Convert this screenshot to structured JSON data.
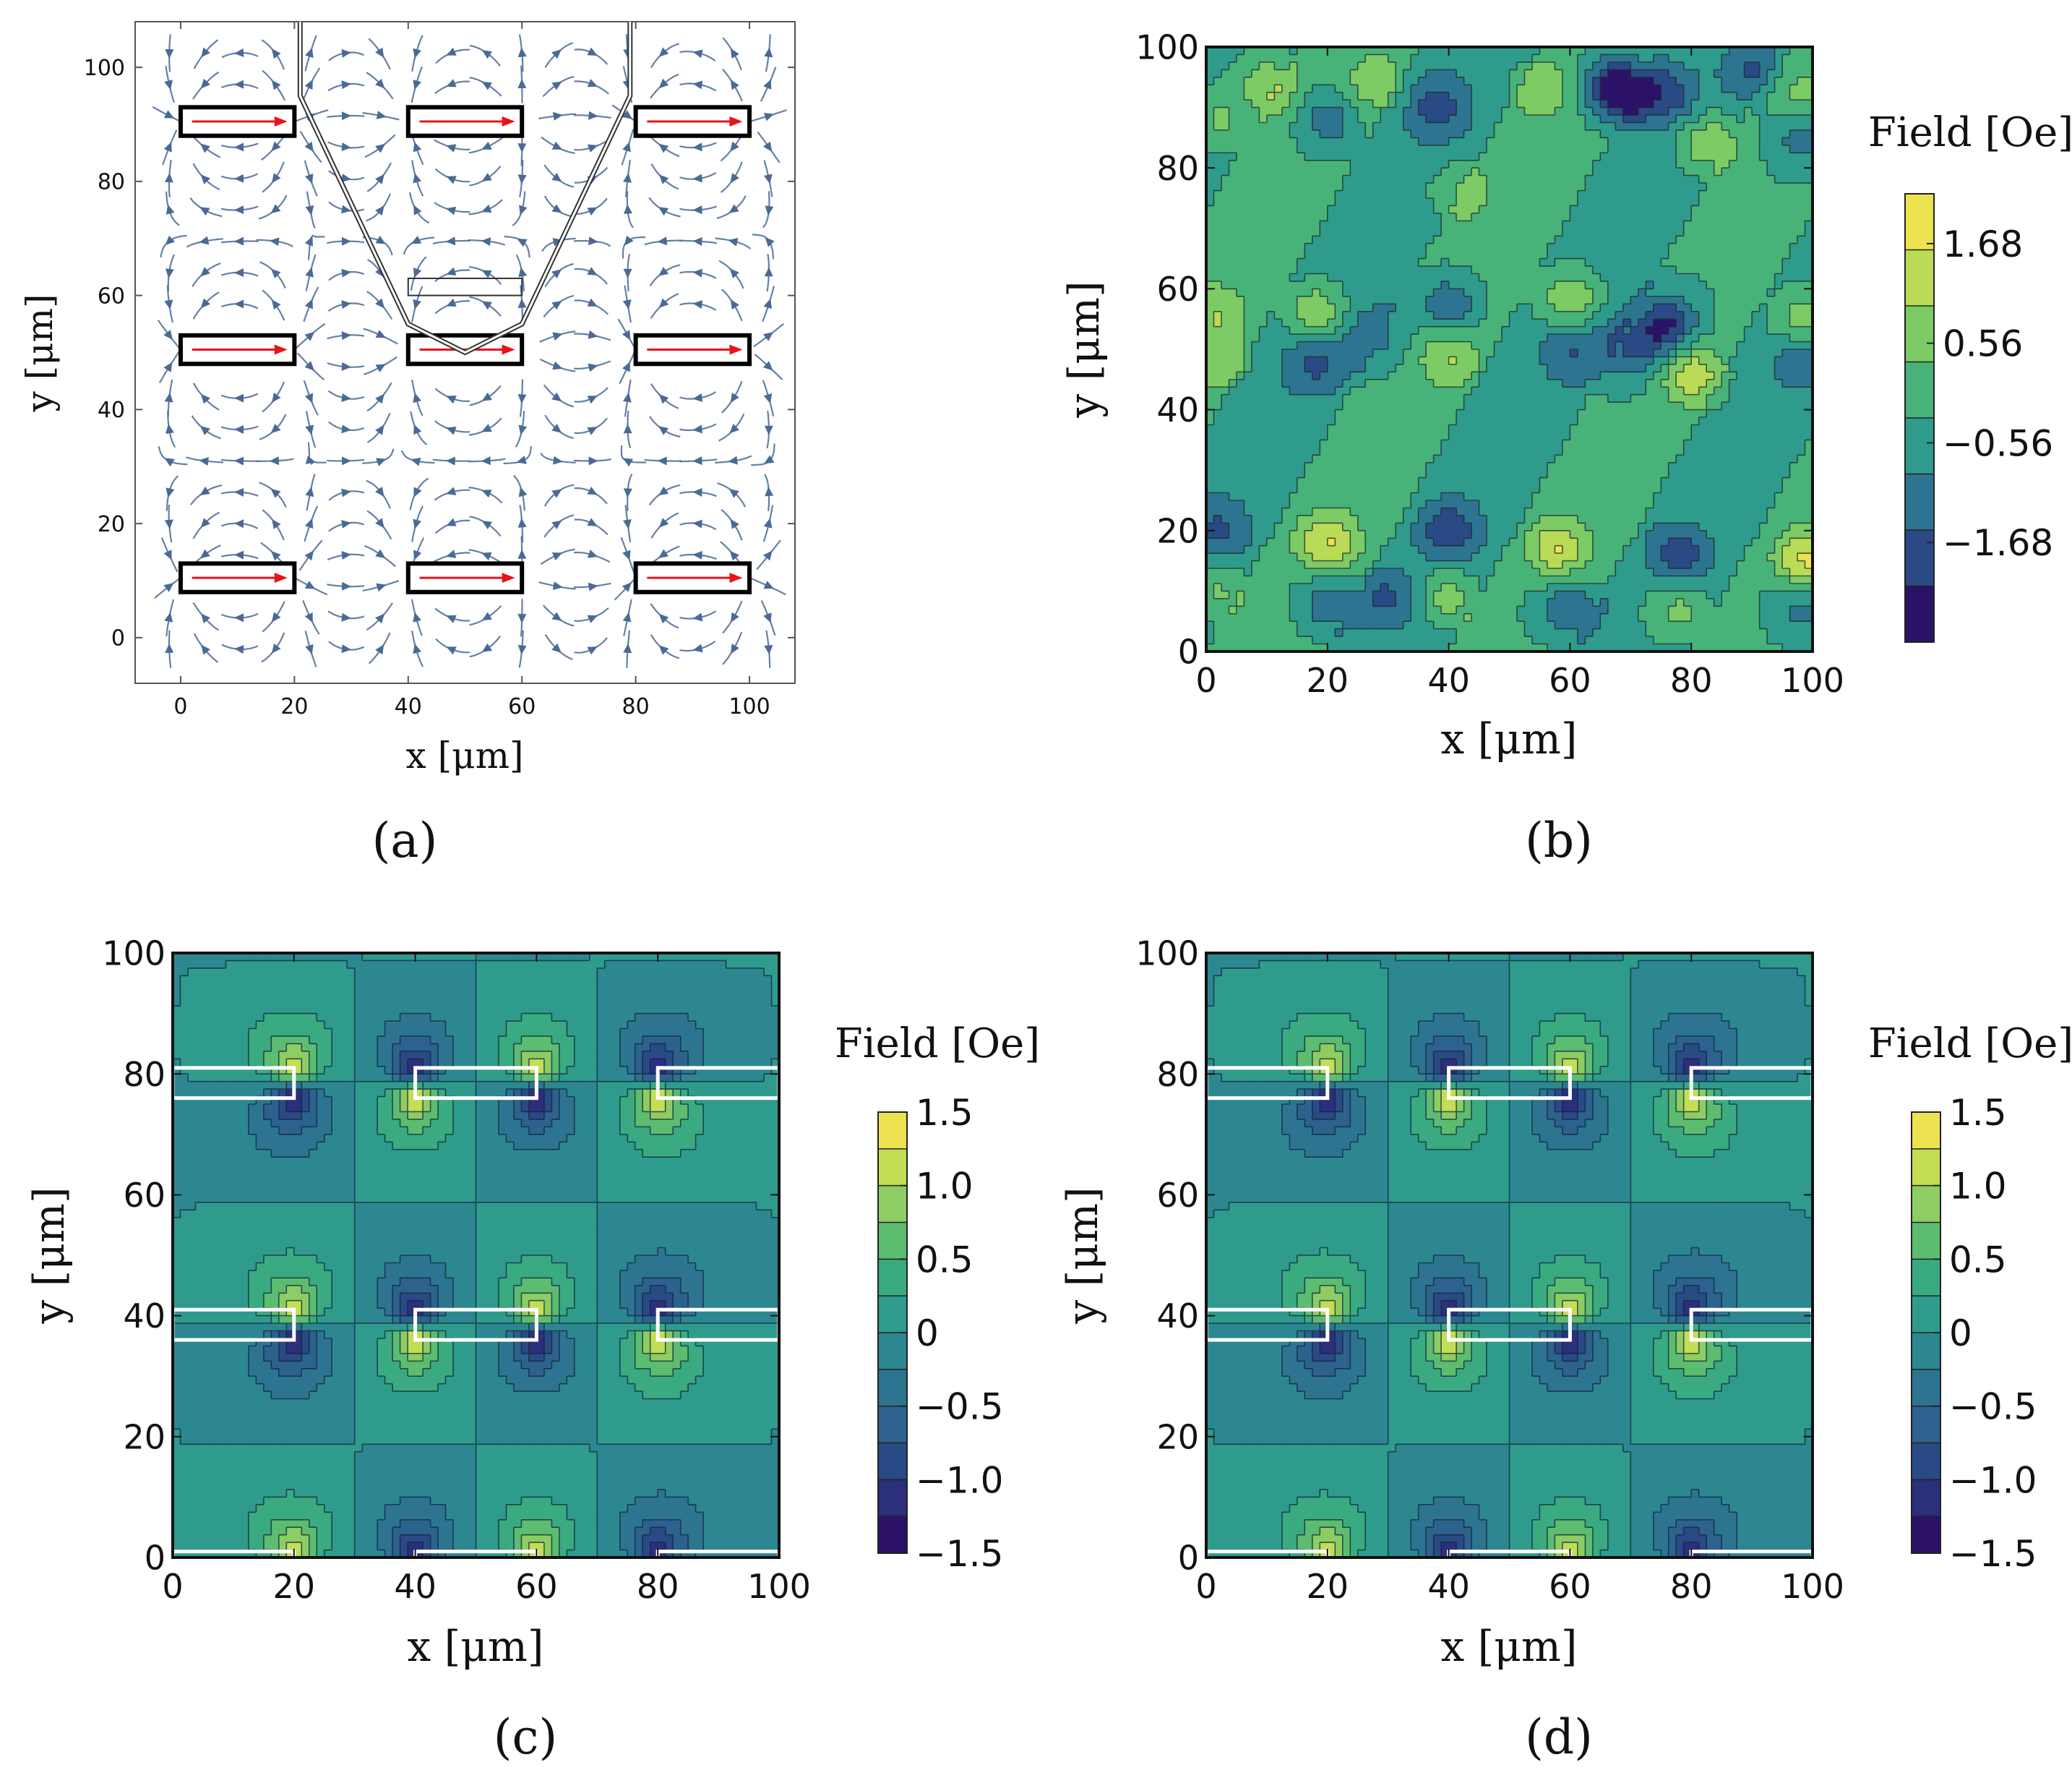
{
  "figure": {
    "panel_labels": [
      "(a)",
      "(b)",
      "(c)",
      "(d)"
    ]
  },
  "chart_data": [
    {
      "panel": "(a)",
      "type": "vector-field",
      "title": "",
      "xlabel": "x [μm]",
      "ylabel": "y [μm]",
      "xlim": [
        -8,
        108
      ],
      "ylim": [
        -8,
        108
      ],
      "xticks": [
        0,
        20,
        40,
        60,
        80,
        100
      ],
      "yticks": [
        0,
        20,
        40,
        60,
        80,
        100
      ],
      "arrow_color": "#4a6a96",
      "moment_color": "#e8141b",
      "magnets": [
        {
          "x0": 0,
          "x1": 20,
          "y0": 88,
          "y1": 93
        },
        {
          "x0": 40,
          "x1": 60,
          "y0": 88,
          "y1": 93
        },
        {
          "x0": 80,
          "x1": 100,
          "y0": 88,
          "y1": 93
        },
        {
          "x0": 0,
          "x1": 20,
          "y0": 48,
          "y1": 53
        },
        {
          "x0": 40,
          "x1": 60,
          "y0": 48,
          "y1": 53
        },
        {
          "x0": 80,
          "x1": 100,
          "y0": 48,
          "y1": 53
        },
        {
          "x0": 0,
          "x1": 20,
          "y0": 8,
          "y1": 13
        },
        {
          "x0": 40,
          "x1": 60,
          "y0": 8,
          "y1": 13
        },
        {
          "x0": 80,
          "x1": 100,
          "y0": 8,
          "y1": 13
        }
      ],
      "cantilever": {
        "outline": [
          [
            21,
            108
          ],
          [
            21,
            95
          ],
          [
            40,
            55
          ],
          [
            50,
            50
          ],
          [
            60,
            55
          ],
          [
            79,
            95
          ],
          [
            79,
            108
          ]
        ],
        "inner_box": {
          "x0": 40,
          "x1": 60,
          "y0": 60,
          "y1": 63
        }
      }
    },
    {
      "panel": "(b)",
      "type": "contour",
      "title": "",
      "xlabel": "x [μm]",
      "ylabel": "y [μm]",
      "xlim": [
        0,
        100
      ],
      "ylim": [
        0,
        100
      ],
      "xticks": [
        0,
        20,
        40,
        60,
        80,
        100
      ],
      "yticks": [
        0,
        20,
        40,
        60,
        80,
        100
      ],
      "colorbar": {
        "label": "Field [Oe]",
        "ticks": [
          "1.68",
          "0.56",
          "−0.56",
          "−1.68"
        ],
        "range": [
          -2.8,
          2.24
        ],
        "colors": [
          "#2b1268",
          "#2a4a86",
          "#2d7491",
          "#2f9b8c",
          "#47b378",
          "#7ccb65",
          "#b9db56",
          "#ede250"
        ]
      },
      "features": [
        {
          "x": 68,
          "y": 93,
          "v": -2.6
        },
        {
          "x": 76,
          "y": 92,
          "v": -1.2
        },
        {
          "x": 83,
          "y": 84,
          "v": 1.3
        },
        {
          "x": 55,
          "y": 93,
          "v": 0.9
        },
        {
          "x": 38,
          "y": 90,
          "v": -1.1
        },
        {
          "x": 28,
          "y": 94,
          "v": 0.9
        },
        {
          "x": 20,
          "y": 88,
          "v": -1.0
        },
        {
          "x": 10,
          "y": 94,
          "v": 1.1
        },
        {
          "x": 2,
          "y": 88,
          "v": 0.8
        },
        {
          "x": 90,
          "y": 96,
          "v": -0.9
        },
        {
          "x": 98,
          "y": 92,
          "v": 0.8
        },
        {
          "x": 42,
          "y": 76,
          "v": 0.9
        },
        {
          "x": 98,
          "y": 85,
          "v": -0.9
        },
        {
          "x": 2,
          "y": 56,
          "v": 0.9
        },
        {
          "x": 18,
          "y": 56,
          "v": 1.4
        },
        {
          "x": 28,
          "y": 52,
          "v": -0.8
        },
        {
          "x": 40,
          "y": 57,
          "v": -1.2
        },
        {
          "x": 60,
          "y": 58,
          "v": 1.3
        },
        {
          "x": 76,
          "y": 54,
          "v": -1.8
        },
        {
          "x": 70,
          "y": 50,
          "v": -1.1
        },
        {
          "x": 98,
          "y": 55,
          "v": 1.0
        },
        {
          "x": 2,
          "y": 48,
          "v": 0.8
        },
        {
          "x": 18,
          "y": 48,
          "v": -1.0
        },
        {
          "x": 40,
          "y": 49,
          "v": 1.0
        },
        {
          "x": 60,
          "y": 50,
          "v": -0.9
        },
        {
          "x": 80,
          "y": 46,
          "v": 1.5
        },
        {
          "x": 98,
          "y": 48,
          "v": -0.8
        },
        {
          "x": 2,
          "y": 20,
          "v": -0.9
        },
        {
          "x": 20,
          "y": 18,
          "v": 1.5
        },
        {
          "x": 40,
          "y": 20,
          "v": -1.3
        },
        {
          "x": 58,
          "y": 17,
          "v": 1.6
        },
        {
          "x": 78,
          "y": 16,
          "v": -1.3
        },
        {
          "x": 99,
          "y": 15,
          "v": 1.8
        },
        {
          "x": 2,
          "y": 10,
          "v": 0.9
        },
        {
          "x": 20,
          "y": 8,
          "v": -1.1
        },
        {
          "x": 30,
          "y": 9,
          "v": -1.0
        },
        {
          "x": 40,
          "y": 9,
          "v": 1.1
        },
        {
          "x": 60,
          "y": 7,
          "v": -1.2
        },
        {
          "x": 78,
          "y": 7,
          "v": 0.9
        },
        {
          "x": 98,
          "y": 8,
          "v": -0.9
        }
      ]
    },
    {
      "panel": "(c)",
      "type": "contour",
      "title": "",
      "xlabel": "x [μm]",
      "ylabel": "y [μm]",
      "xlim": [
        0,
        100
      ],
      "ylim": [
        0,
        100
      ],
      "xticks": [
        0,
        20,
        40,
        60,
        80,
        100
      ],
      "yticks": [
        0,
        20,
        40,
        60,
        80,
        100
      ],
      "colorbar": {
        "label": "Field [Oe]",
        "ticks": [
          "1.5",
          "1.0",
          "0.5",
          "0",
          "−0.5",
          "−1.0",
          "−1.5"
        ],
        "range": [
          -1.5,
          1.5
        ],
        "colors": [
          "#2b1268",
          "#2c2f7c",
          "#2a4a86",
          "#2c628d",
          "#2d7491",
          "#2d8790",
          "#2f9b8c",
          "#3aaa80",
          "#5cbc70",
          "#8dcd63",
          "#c3de55",
          "#ede250"
        ]
      },
      "magnets": [
        {
          "x0": 0,
          "x1": 20,
          "y0": 76,
          "y1": 81
        },
        {
          "x0": 40,
          "x1": 60,
          "y0": 76,
          "y1": 81
        },
        {
          "x0": 80,
          "x1": 100,
          "y0": 76,
          "y1": 81
        },
        {
          "x0": 0,
          "x1": 20,
          "y0": 36,
          "y1": 41
        },
        {
          "x0": 40,
          "x1": 60,
          "y0": 36,
          "y1": 41
        },
        {
          "x0": 80,
          "x1": 100,
          "y0": 36,
          "y1": 41
        },
        {
          "x0": 0,
          "x1": 20,
          "y0": -4,
          "y1": 1
        },
        {
          "x0": 40,
          "x1": 60,
          "y0": -4,
          "y1": 1
        },
        {
          "x0": 80,
          "x1": 100,
          "y0": -4,
          "y1": 1
        }
      ]
    },
    {
      "panel": "(d)",
      "type": "contour",
      "title": "",
      "xlabel": "x [μm]",
      "ylabel": "y [μm]",
      "xlim": [
        0,
        100
      ],
      "ylim": [
        0,
        100
      ],
      "xticks": [
        0,
        20,
        40,
        60,
        80,
        100
      ],
      "yticks": [
        0,
        20,
        40,
        60,
        80,
        100
      ],
      "colorbar": {
        "label": "Field [Oe]",
        "ticks": [
          "1.5",
          "1.0",
          "0.5",
          "0",
          "−0.5",
          "−1.0",
          "−1.5"
        ],
        "range": [
          -1.5,
          1.5
        ],
        "colors": [
          "#2b1268",
          "#2c2f7c",
          "#2a4a86",
          "#2c628d",
          "#2d7491",
          "#2d8790",
          "#2f9b8c",
          "#3aaa80",
          "#5cbc70",
          "#8dcd63",
          "#c3de55",
          "#ede250"
        ]
      },
      "magnets": [
        {
          "x0": 0,
          "x1": 20,
          "y0": 76,
          "y1": 81
        },
        {
          "x0": 40,
          "x1": 60,
          "y0": 76,
          "y1": 81
        },
        {
          "x0": 80,
          "x1": 100,
          "y0": 76,
          "y1": 81
        },
        {
          "x0": 0,
          "x1": 20,
          "y0": 36,
          "y1": 41
        },
        {
          "x0": 40,
          "x1": 60,
          "y0": 36,
          "y1": 41
        },
        {
          "x0": 80,
          "x1": 100,
          "y0": 36,
          "y1": 41
        },
        {
          "x0": 0,
          "x1": 20,
          "y0": -4,
          "y1": 1
        },
        {
          "x0": 40,
          "x1": 60,
          "y0": -4,
          "y1": 1
        },
        {
          "x0": 80,
          "x1": 100,
          "y0": -4,
          "y1": 1
        }
      ]
    }
  ]
}
